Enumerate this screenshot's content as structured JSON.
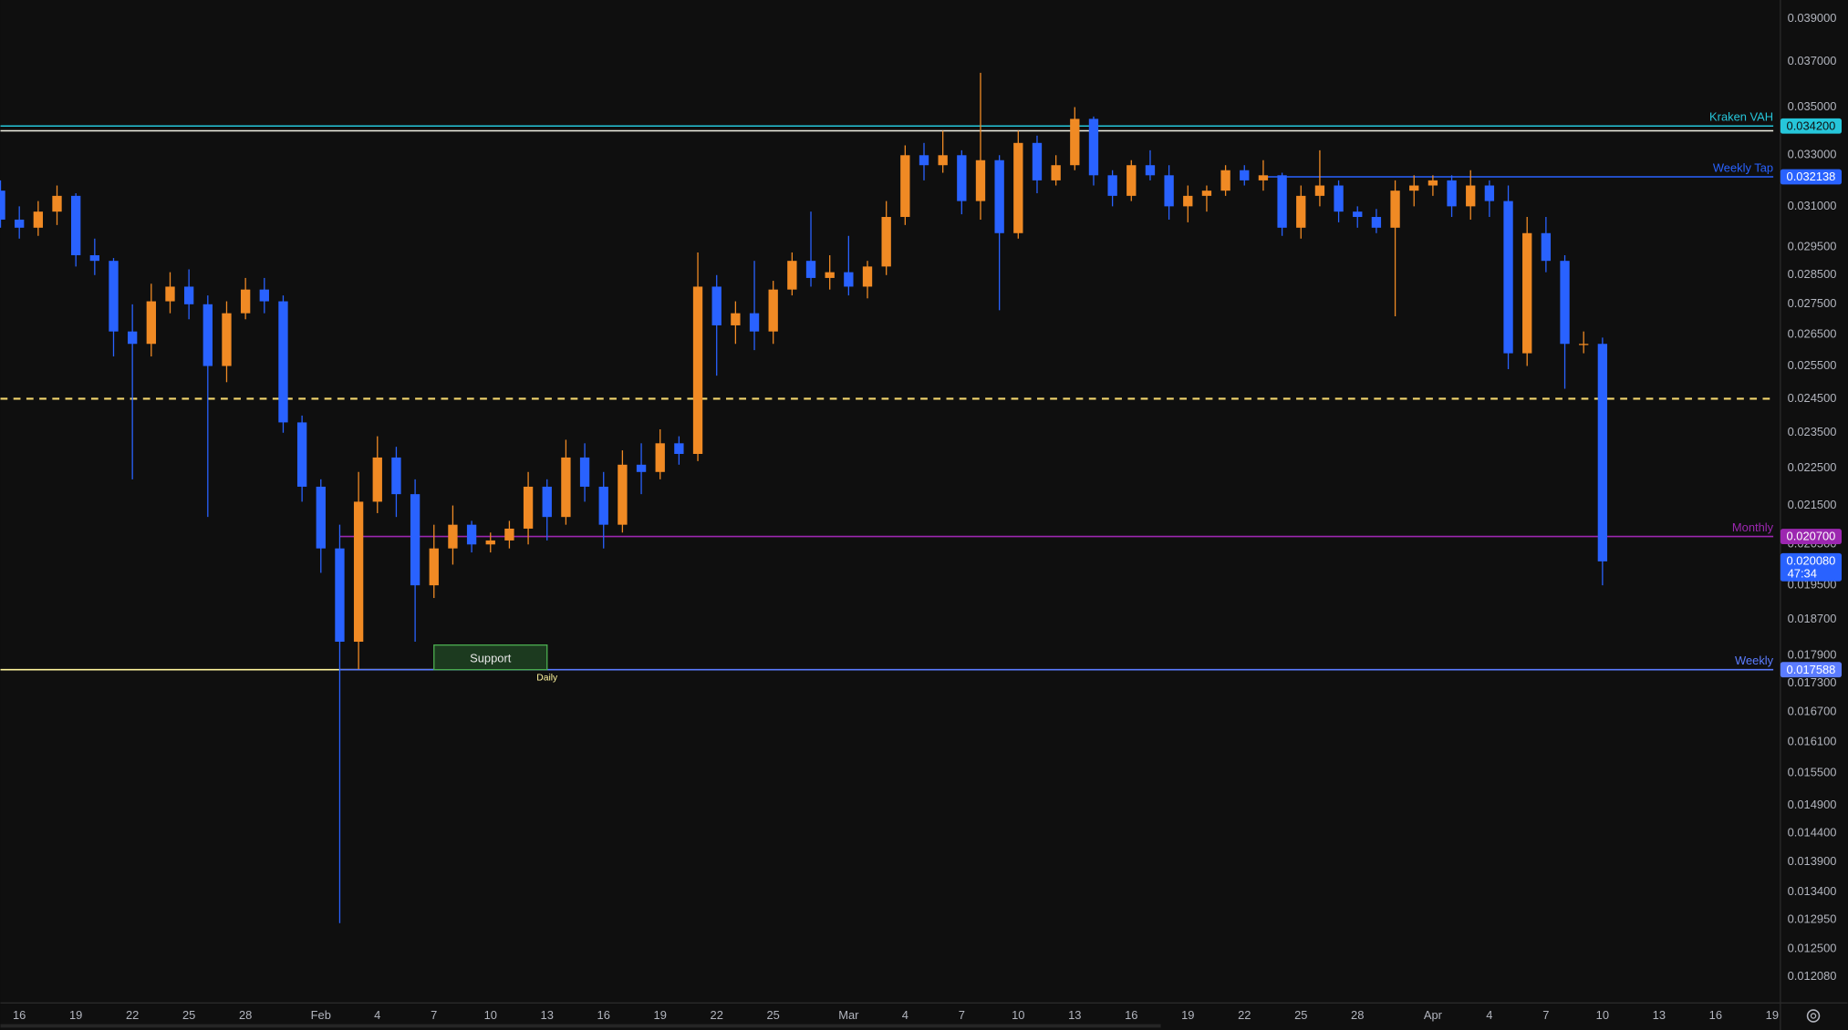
{
  "chart_data": {
    "type": "candlestick",
    "log_scale": true,
    "grid": false,
    "up_color": "#f08a24",
    "down_color": "#2962ff",
    "categories": [
      null,
      "16",
      null,
      null,
      "19",
      null,
      null,
      "22",
      null,
      null,
      "25",
      null,
      null,
      "28",
      null,
      null,
      null,
      "Feb",
      null,
      null,
      "4",
      null,
      null,
      "7",
      null,
      null,
      "10",
      null,
      null,
      "13",
      null,
      null,
      "16",
      null,
      null,
      "19",
      null,
      null,
      "22",
      null,
      null,
      "25",
      null,
      null,
      null,
      "Mar",
      null,
      null,
      "4",
      null,
      null,
      "7",
      null,
      null,
      "10",
      null,
      null,
      "13",
      null,
      null,
      "16",
      null,
      null,
      "19",
      null,
      null,
      "22",
      null,
      null,
      "25",
      null,
      null,
      "28",
      null,
      null,
      null,
      "Apr",
      null,
      null,
      "4",
      null,
      null,
      "7",
      null,
      null,
      "10",
      null,
      null,
      "13",
      null,
      null,
      "16",
      null,
      null,
      "19"
    ],
    "open": [
      0.0316,
      0.0305,
      0.0302,
      0.0308,
      0.0314,
      0.0292,
      0.029,
      0.0266,
      0.0262,
      0.0276,
      0.0281,
      0.0275,
      0.0255,
      0.0272,
      0.028,
      0.0276,
      0.0238,
      0.022,
      0.0204,
      0.0182,
      0.0216,
      0.0228,
      0.0218,
      0.0195,
      0.0204,
      0.021,
      0.0205,
      0.0206,
      0.0209,
      0.022,
      0.0212,
      0.0228,
      0.022,
      0.021,
      0.0226,
      0.0224,
      0.0232,
      0.0229,
      0.0281,
      0.0268,
      0.0272,
      0.0266,
      0.028,
      0.029,
      0.0284,
      0.0286,
      0.0281,
      0.0288,
      0.0306,
      0.033,
      0.0326,
      0.033,
      0.0312,
      0.0328,
      0.03,
      0.0335,
      0.032,
      0.0326,
      0.0345,
      0.0322,
      0.0314,
      0.0326,
      0.0322,
      0.031,
      0.0314,
      0.0316,
      0.0324,
      0.032,
      0.0322,
      0.0302,
      0.0314,
      0.0318,
      0.0308,
      0.0306,
      0.0302,
      0.0316,
      0.0318,
      0.032,
      0.031,
      0.0318,
      0.0312,
      0.0259,
      0.03,
      0.029,
      0.0262,
      0.0262,
      null,
      null,
      null,
      null,
      null,
      null,
      null,
      null,
      null
    ],
    "high": [
      0.032,
      0.031,
      0.0312,
      0.0318,
      0.0315,
      0.0298,
      0.0291,
      0.0275,
      0.0282,
      0.0286,
      0.0287,
      0.0278,
      0.0276,
      0.0284,
      0.0284,
      0.0278,
      0.024,
      0.0222,
      0.021,
      0.0224,
      0.0234,
      0.0231,
      0.0222,
      0.021,
      0.0215,
      0.0211,
      0.0208,
      0.0211,
      0.0224,
      0.0222,
      0.0233,
      0.0232,
      0.0224,
      0.023,
      0.0232,
      0.0236,
      0.0234,
      0.0293,
      0.0285,
      0.0276,
      0.029,
      0.0283,
      0.0293,
      0.0308,
      0.0292,
      0.0299,
      0.029,
      0.0312,
      0.0334,
      0.0335,
      0.034,
      0.0332,
      0.0365,
      0.033,
      0.034,
      0.0338,
      0.033,
      0.035,
      0.0346,
      0.0324,
      0.0328,
      0.0332,
      0.0326,
      0.0318,
      0.0318,
      0.0326,
      0.0326,
      0.0328,
      0.0323,
      0.0318,
      0.0332,
      0.032,
      0.031,
      0.0309,
      0.032,
      0.0322,
      0.0322,
      0.0322,
      0.0324,
      0.032,
      0.0318,
      0.0306,
      0.0306,
      0.0292,
      0.0266,
      0.0264,
      null,
      null,
      null,
      null,
      null,
      null,
      null,
      null,
      null
    ],
    "low": [
      0.0302,
      0.0298,
      0.0299,
      0.0303,
      0.0288,
      0.0285,
      0.0258,
      0.0222,
      0.0258,
      0.0272,
      0.027,
      0.0212,
      0.025,
      0.027,
      0.0272,
      0.0235,
      0.0216,
      0.0198,
      0.0129,
      0.0176,
      0.0213,
      0.0212,
      0.0182,
      0.0192,
      0.02,
      0.0203,
      0.0203,
      0.0204,
      0.0205,
      0.0206,
      0.021,
      0.0216,
      0.0204,
      0.0208,
      0.0218,
      0.0222,
      0.0226,
      0.0227,
      0.0252,
      0.0262,
      0.026,
      0.0262,
      0.0278,
      0.0281,
      0.028,
      0.0278,
      0.0277,
      0.0285,
      0.0303,
      0.032,
      0.0323,
      0.0307,
      0.0305,
      0.0273,
      0.0298,
      0.0315,
      0.0318,
      0.0324,
      0.0318,
      0.031,
      0.0312,
      0.032,
      0.0305,
      0.0304,
      0.0308,
      0.0314,
      0.0318,
      0.0316,
      0.0299,
      0.0298,
      0.031,
      0.0304,
      0.0302,
      0.03,
      0.0271,
      0.031,
      0.0314,
      0.0306,
      0.0305,
      0.0306,
      0.0254,
      0.0255,
      0.0286,
      0.0248,
      0.0259,
      0.0195,
      null,
      null,
      null,
      null,
      null,
      null,
      null,
      null,
      null
    ],
    "close": [
      0.0305,
      0.0302,
      0.0308,
      0.0314,
      0.0292,
      0.029,
      0.0266,
      0.0262,
      0.0276,
      0.0281,
      0.0275,
      0.0255,
      0.0272,
      0.028,
      0.0276,
      0.0238,
      0.022,
      0.0204,
      0.0182,
      0.0216,
      0.0228,
      0.0218,
      0.0195,
      0.0204,
      0.021,
      0.0205,
      0.0206,
      0.0209,
      0.022,
      0.0212,
      0.0228,
      0.022,
      0.021,
      0.0226,
      0.0224,
      0.0232,
      0.0229,
      0.0281,
      0.0268,
      0.0272,
      0.0266,
      0.028,
      0.029,
      0.0284,
      0.0286,
      0.0281,
      0.0288,
      0.0306,
      0.033,
      0.0326,
      0.033,
      0.0312,
      0.0328,
      0.03,
      0.0335,
      0.032,
      0.0326,
      0.0345,
      0.0322,
      0.0314,
      0.0326,
      0.0322,
      0.031,
      0.0314,
      0.0316,
      0.0324,
      0.032,
      0.0322,
      0.0302,
      0.0314,
      0.0318,
      0.0308,
      0.0306,
      0.0302,
      0.0316,
      0.0318,
      0.032,
      0.031,
      0.0318,
      0.0312,
      0.0259,
      0.03,
      0.029,
      0.0262,
      0.0262,
      0.02008,
      null,
      null,
      null,
      null,
      null,
      null,
      null,
      null,
      null
    ],
    "ylim": [
      0.0117,
      0.0399
    ],
    "yticks": [
      {
        "value": 0.039,
        "label": "0.039000"
      },
      {
        "value": 0.037,
        "label": "0.037000"
      },
      {
        "value": 0.035,
        "label": "0.035000"
      },
      {
        "value": 0.033,
        "label": "0.033000"
      },
      {
        "value": 0.031,
        "label": "0.031000"
      },
      {
        "value": 0.0295,
        "label": "0.029500"
      },
      {
        "value": 0.0285,
        "label": "0.028500"
      },
      {
        "value": 0.0275,
        "label": "0.027500"
      },
      {
        "value": 0.0265,
        "label": "0.026500"
      },
      {
        "value": 0.0255,
        "label": "0.025500"
      },
      {
        "value": 0.0245,
        "label": "0.024500"
      },
      {
        "value": 0.0235,
        "label": "0.023500"
      },
      {
        "value": 0.0225,
        "label": "0.022500"
      },
      {
        "value": 0.0215,
        "label": "0.021500"
      },
      {
        "value": 0.0205,
        "label": "0.020500"
      },
      {
        "value": 0.0195,
        "label": "0.019500"
      },
      {
        "value": 0.0187,
        "label": "0.018700"
      },
      {
        "value": 0.0179,
        "label": "0.017900"
      },
      {
        "value": 0.0173,
        "label": "0.017300"
      },
      {
        "value": 0.0167,
        "label": "0.016700"
      },
      {
        "value": 0.0161,
        "label": "0.016100"
      },
      {
        "value": 0.0155,
        "label": "0.015500"
      },
      {
        "value": 0.0149,
        "label": "0.014900"
      },
      {
        "value": 0.0144,
        "label": "0.014400"
      },
      {
        "value": 0.0139,
        "label": "0.013900"
      },
      {
        "value": 0.0134,
        "label": "0.013400"
      },
      {
        "value": 0.01295,
        "label": "0.012950"
      },
      {
        "value": 0.0125,
        "label": "0.012500"
      },
      {
        "value": 0.01208,
        "label": "0.012080"
      }
    ],
    "levels": [
      {
        "name": "Kraken VAH",
        "value": 0.0342,
        "label": "0.034200",
        "color": "#26c6da"
      },
      {
        "value": 0.034,
        "color": "#f2f2e6"
      },
      {
        "name": "Weekly Tap",
        "value": 0.032138,
        "label": "0.032138",
        "color": "#2962ff",
        "start": 67
      },
      {
        "value": 0.0245,
        "color": "#f5d76e",
        "dashed": true
      },
      {
        "name": "Monthly",
        "value": 0.0207,
        "label": "0.020700",
        "color": "#9c27b0",
        "start": 18
      },
      {
        "name": "Daily",
        "value": 0.017588,
        "color": "#fff59d",
        "end": 29
      },
      {
        "name": "Weekly",
        "value": 0.017588,
        "label": "0.017588",
        "color": "#5b7cff",
        "start": 18
      }
    ],
    "support_zone": {
      "text": "Support",
      "start": 23,
      "end": 29,
      "low": 0.017588,
      "high": 0.0181
    },
    "last_price": {
      "value": 0.02008,
      "label": "0.020080",
      "countdown": "47:34",
      "color": "#2962ff"
    }
  }
}
